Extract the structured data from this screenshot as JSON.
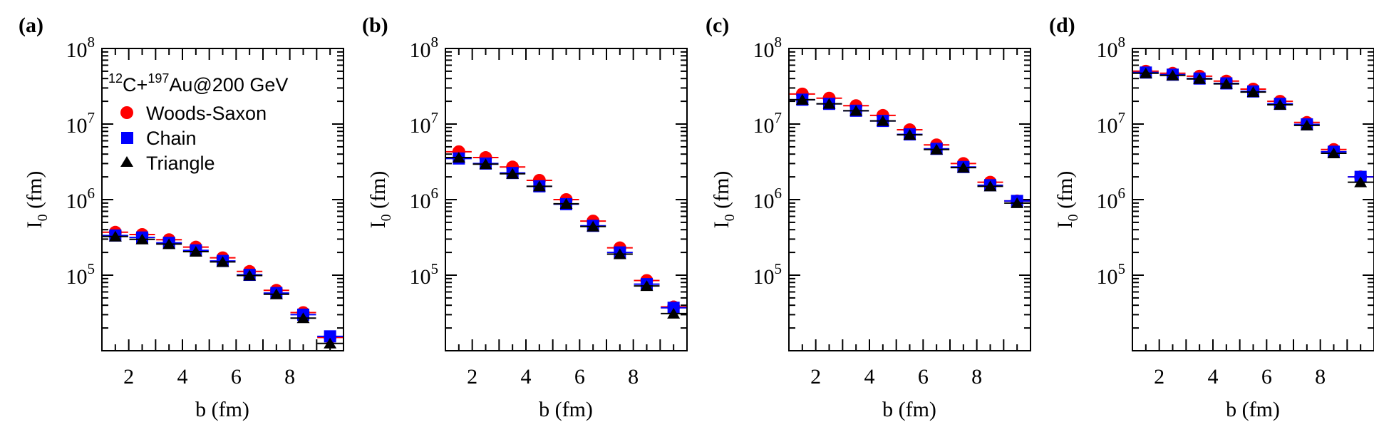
{
  "figure": {
    "panel_labels": [
      "(a)",
      "(b)",
      "(c)",
      "(d)"
    ],
    "legend": {
      "title": {
        "pre1": "12",
        "mid1": "C+",
        "pre2": "197",
        "mid2": "Au@200 GeV"
      },
      "items": [
        "Woods-Saxon",
        "Chain",
        "Triangle"
      ]
    }
  },
  "chart_data": [
    {
      "type": "scatter",
      "panel": "(a)",
      "xlabel": "b (fm)",
      "ylabel_main": "I",
      "ylabel_sub": "0",
      "ylabel_rest": " (fm)",
      "xlim": [
        1.0,
        10.0
      ],
      "ylim": [
        10000,
        100000000
      ],
      "yscale": "log",
      "xticks": [
        2,
        4,
        6,
        8
      ],
      "yticks": [
        {
          "base": "10",
          "exp": "5",
          "value": 100000
        },
        {
          "base": "10",
          "exp": "6",
          "value": 1000000
        },
        {
          "base": "10",
          "exp": "7",
          "value": 10000000
        },
        {
          "base": "10",
          "exp": "8",
          "value": 100000000
        }
      ],
      "x": [
        1.5,
        2.5,
        3.5,
        4.5,
        5.5,
        6.5,
        7.5,
        8.5,
        9.5
      ],
      "series": [
        {
          "name": "Woods-Saxon",
          "marker": "circle",
          "color": "#ff0000",
          "values": [
            370000,
            345000,
            295000,
            235000,
            170000,
            112000,
            63000,
            32000,
            15000
          ]
        },
        {
          "name": "Chain",
          "marker": "square",
          "color": "#0000ff",
          "values": [
            335000,
            315000,
            268000,
            213000,
            154000,
            101000,
            58000,
            30000,
            15500
          ]
        },
        {
          "name": "Triangle",
          "marker": "triangle",
          "color": "#000000",
          "values": [
            325000,
            298000,
            258000,
            205000,
            150000,
            99000,
            56000,
            27000,
            12500
          ]
        }
      ]
    },
    {
      "type": "scatter",
      "panel": "(b)",
      "xlabel": "b (fm)",
      "ylabel_main": "I",
      "ylabel_sub": "0",
      "ylabel_rest": " (fm)",
      "xlim": [
        1.0,
        10.0
      ],
      "ylim": [
        10000,
        100000000
      ],
      "yscale": "log",
      "xticks": [
        2,
        4,
        6,
        8
      ],
      "yticks": [
        {
          "base": "10",
          "exp": "5",
          "value": 100000
        },
        {
          "base": "10",
          "exp": "6",
          "value": 1000000
        },
        {
          "base": "10",
          "exp": "7",
          "value": 10000000
        },
        {
          "base": "10",
          "exp": "8",
          "value": 100000000
        }
      ],
      "x": [
        1.5,
        2.5,
        3.5,
        4.5,
        5.5,
        6.5,
        7.5,
        8.5,
        9.5
      ],
      "series": [
        {
          "name": "Woods-Saxon",
          "marker": "circle",
          "color": "#ff0000",
          "values": [
            4300000,
            3600000,
            2700000,
            1800000,
            1000000,
            520000,
            230000,
            85000,
            38000
          ]
        },
        {
          "name": "Chain",
          "marker": "square",
          "color": "#0000ff",
          "values": [
            3500000,
            3000000,
            2250000,
            1500000,
            870000,
            450000,
            200000,
            76000,
            37000
          ]
        },
        {
          "name": "Triangle",
          "marker": "triangle",
          "color": "#000000",
          "values": [
            3600000,
            2950000,
            2200000,
            1500000,
            880000,
            440000,
            190000,
            72000,
            31000
          ]
        }
      ]
    },
    {
      "type": "scatter",
      "panel": "(c)",
      "xlabel": "b (fm)",
      "ylabel_main": "I",
      "ylabel_sub": "0",
      "ylabel_rest": " (fm)",
      "xlim": [
        1.0,
        10.0
      ],
      "ylim": [
        10000,
        100000000
      ],
      "yscale": "log",
      "xticks": [
        2,
        4,
        6,
        8
      ],
      "yticks": [
        {
          "base": "10",
          "exp": "5",
          "value": 100000
        },
        {
          "base": "10",
          "exp": "6",
          "value": 1000000
        },
        {
          "base": "10",
          "exp": "7",
          "value": 10000000
        },
        {
          "base": "10",
          "exp": "8",
          "value": 100000000
        }
      ],
      "x": [
        1.5,
        2.5,
        3.5,
        4.5,
        5.5,
        6.5,
        7.5,
        8.5,
        9.5
      ],
      "series": [
        {
          "name": "Woods-Saxon",
          "marker": "circle",
          "color": "#ff0000",
          "values": [
            25000000,
            22000000,
            17500000,
            13000000,
            8400000,
            5300000,
            3000000,
            1700000,
            960000
          ]
        },
        {
          "name": "Chain",
          "marker": "square",
          "color": "#0000ff",
          "values": [
            21000000,
            18500000,
            15000000,
            11000000,
            7300000,
            4700000,
            2700000,
            1550000,
            960000
          ]
        },
        {
          "name": "Triangle",
          "marker": "triangle",
          "color": "#000000",
          "values": [
            21000000,
            18500000,
            15000000,
            11000000,
            7200000,
            4600000,
            2650000,
            1500000,
            900000
          ]
        }
      ]
    },
    {
      "type": "scatter",
      "panel": "(d)",
      "xlabel": "b (fm)",
      "ylabel_main": "I",
      "ylabel_sub": "0",
      "ylabel_rest": " (fm)",
      "xlim": [
        1.0,
        10.0
      ],
      "ylim": [
        10000,
        100000000
      ],
      "yscale": "log",
      "xticks": [
        2,
        4,
        6,
        8
      ],
      "yticks": [
        {
          "base": "10",
          "exp": "5",
          "value": 100000
        },
        {
          "base": "10",
          "exp": "6",
          "value": 1000000
        },
        {
          "base": "10",
          "exp": "7",
          "value": 10000000
        },
        {
          "base": "10",
          "exp": "8",
          "value": 100000000
        }
      ],
      "x": [
        1.5,
        2.5,
        3.5,
        4.5,
        5.5,
        6.5,
        7.5,
        8.5,
        9.5
      ],
      "series": [
        {
          "name": "Woods-Saxon",
          "marker": "circle",
          "color": "#ff0000",
          "values": [
            50000000,
            47000000,
            43000000,
            37000000,
            29000000,
            20000000,
            10500000,
            4600000,
            2000000
          ]
        },
        {
          "name": "Chain",
          "marker": "square",
          "color": "#0000ff",
          "values": [
            48000000,
            45000000,
            40000000,
            34500000,
            27000000,
            18500000,
            9900000,
            4300000,
            2000000
          ]
        },
        {
          "name": "Triangle",
          "marker": "triangle",
          "color": "#000000",
          "values": [
            47000000,
            44000000,
            39500000,
            34000000,
            26500000,
            18000000,
            9600000,
            4100000,
            1700000
          ]
        }
      ]
    }
  ]
}
